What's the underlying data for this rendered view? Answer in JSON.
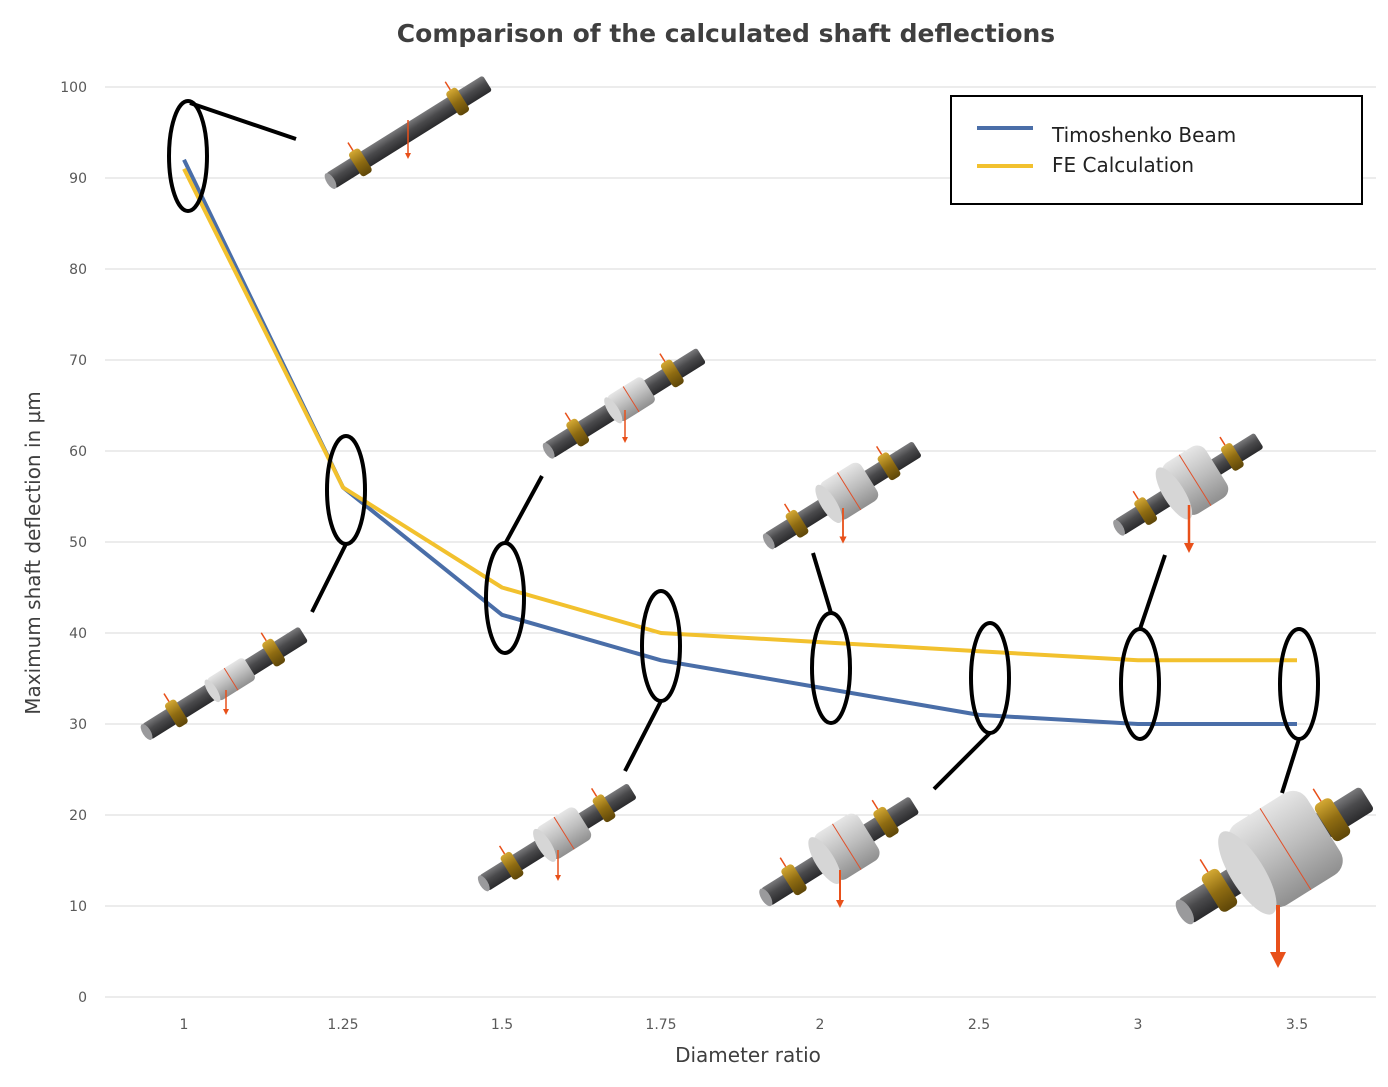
{
  "chart_data": {
    "type": "line",
    "title": "Comparison of the calculated shaft deflections",
    "xlabel": "Diameter ratio",
    "ylabel": "Maximum shaft deflection in µm",
    "categories": [
      "1",
      "1.25",
      "1.5",
      "1.75",
      "2",
      "2.5",
      "3",
      "3.5"
    ],
    "yticks": [
      "0",
      "10",
      "20",
      "30",
      "40",
      "50",
      "60",
      "70",
      "80",
      "90",
      "100"
    ],
    "ylim": [
      0,
      100
    ],
    "grid": true,
    "legend_position": "top-right",
    "series": [
      {
        "name": "Timoshenko Beam",
        "color": "#4a6ea8",
        "values": [
          92,
          56,
          42,
          37,
          34,
          31,
          30,
          30
        ]
      },
      {
        "name": "FE Calculation",
        "color": "#f2c12e",
        "values": [
          91,
          56,
          45,
          40,
          39,
          38,
          37,
          37
        ]
      }
    ],
    "annotations": "each data point circled and linked to a rendered shaft illustration with bearings and growing central collar"
  },
  "colors": {
    "shaft": "#4d4d4f",
    "collar": "#c8c8c8",
    "bearing": "#b08a1e",
    "force_arrow": "#e8501a"
  }
}
